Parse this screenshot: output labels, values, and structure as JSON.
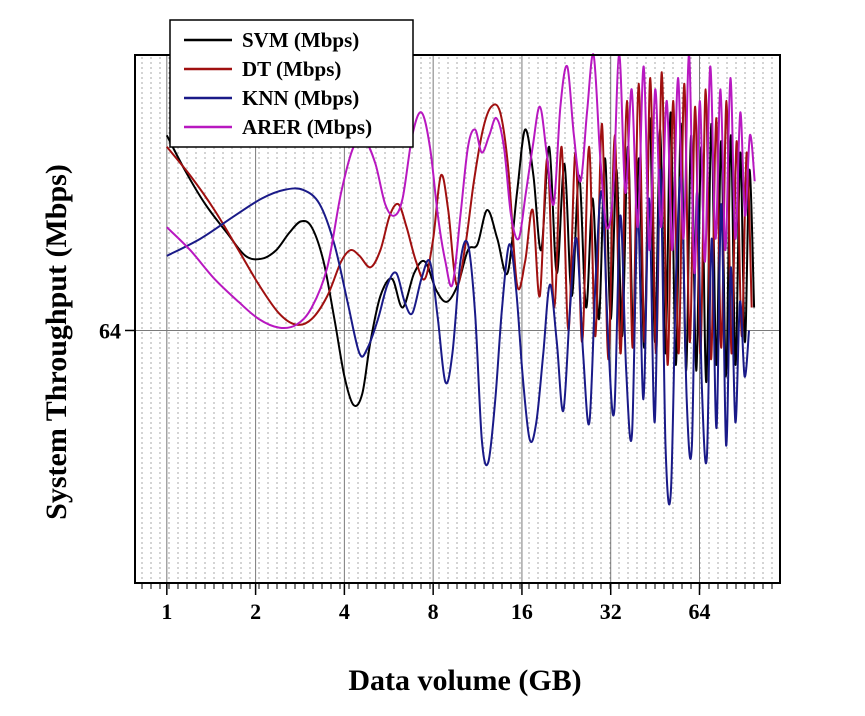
{
  "chart_data": {
    "type": "line",
    "xlabel": "Data volume (GB)",
    "ylabel": "System Throughput (Mbps)",
    "x_scale": "log2",
    "xlim": [
      0.78,
      120
    ],
    "x_ticks": [
      1,
      2,
      4,
      8,
      16,
      32,
      64
    ],
    "x_tick_labels": [
      "1",
      "2",
      "4",
      "8",
      "16",
      "32",
      "64"
    ],
    "ylim": [
      20,
      112
    ],
    "y_ticks": [
      64
    ],
    "y_tick_labels": [
      "64"
    ],
    "grid": true,
    "legend_position": "top-left",
    "series": [
      {
        "name": "SVM (Mbps)",
        "color": "#000000",
        "points": [
          [
            1,
            98
          ],
          [
            1.15,
            92
          ],
          [
            1.35,
            86
          ],
          [
            1.6,
            81
          ],
          [
            1.85,
            77
          ],
          [
            2.1,
            76.5
          ],
          [
            2.35,
            78
          ],
          [
            2.6,
            81
          ],
          [
            2.85,
            83
          ],
          [
            3.1,
            82
          ],
          [
            3.4,
            76
          ],
          [
            3.7,
            66
          ],
          [
            4.0,
            56
          ],
          [
            4.3,
            51
          ],
          [
            4.6,
            53
          ],
          [
            4.9,
            62
          ],
          [
            5.3,
            70
          ],
          [
            5.8,
            73
          ],
          [
            6.3,
            68
          ],
          [
            6.9,
            74
          ],
          [
            7.5,
            76
          ],
          [
            8.2,
            71
          ],
          [
            8.9,
            69
          ],
          [
            9.7,
            72
          ],
          [
            10.5,
            78
          ],
          [
            11.3,
            79
          ],
          [
            12.2,
            85
          ],
          [
            13.2,
            80
          ],
          [
            14.3,
            74
          ],
          [
            15.4,
            88
          ],
          [
            16.4,
            99
          ],
          [
            17.5,
            91
          ],
          [
            18.6,
            78
          ],
          [
            19.8,
            96
          ],
          [
            21.0,
            74
          ],
          [
            22.3,
            93
          ],
          [
            23.6,
            70
          ],
          [
            25.0,
            91
          ],
          [
            26.4,
            68
          ],
          [
            27.8,
            87
          ],
          [
            29.2,
            66
          ],
          [
            30.6,
            94
          ],
          [
            32.0,
            66
          ],
          [
            33.5,
            92
          ],
          [
            35.0,
            63
          ],
          [
            36.6,
            96
          ],
          [
            38.2,
            62
          ],
          [
            39.9,
            94
          ],
          [
            41.6,
            61
          ],
          [
            43.4,
            101
          ],
          [
            45.2,
            62
          ],
          [
            47.1,
            99
          ],
          [
            49.1,
            60
          ],
          [
            51.1,
            102
          ],
          [
            53.2,
            58
          ],
          [
            55.4,
            100
          ],
          [
            57.6,
            57
          ],
          [
            60.0,
            98
          ],
          [
            62.4,
            57
          ],
          [
            64.9,
            96
          ],
          [
            67.5,
            55
          ],
          [
            70.2,
            100
          ],
          [
            73.0,
            58
          ],
          [
            75.8,
            97
          ],
          [
            78.7,
            56
          ],
          [
            81.7,
            98
          ],
          [
            84.8,
            58
          ],
          [
            88.0,
            95
          ],
          [
            91.2,
            62
          ],
          [
            94.5,
            92
          ],
          [
            98.0,
            68
          ]
        ]
      },
      {
        "name": "DT (Mbps)",
        "color": "#a01010",
        "points": [
          [
            1,
            96
          ],
          [
            1.2,
            91
          ],
          [
            1.45,
            85
          ],
          [
            1.75,
            78
          ],
          [
            2.05,
            72
          ],
          [
            2.4,
            67
          ],
          [
            2.75,
            65
          ],
          [
            3.1,
            66
          ],
          [
            3.5,
            70
          ],
          [
            3.9,
            76
          ],
          [
            4.2,
            78
          ],
          [
            4.5,
            77
          ],
          [
            4.9,
            75
          ],
          [
            5.3,
            78
          ],
          [
            5.7,
            84
          ],
          [
            6.1,
            86
          ],
          [
            6.5,
            82
          ],
          [
            7.0,
            76
          ],
          [
            7.5,
            73
          ],
          [
            8.0,
            80
          ],
          [
            8.5,
            91
          ],
          [
            9.0,
            85
          ],
          [
            9.6,
            72
          ],
          [
            10.3,
            79
          ],
          [
            11.0,
            90
          ],
          [
            11.8,
            99
          ],
          [
            12.6,
            103
          ],
          [
            13.5,
            102
          ],
          [
            14.4,
            92
          ],
          [
            15.4,
            72
          ],
          [
            16.4,
            76
          ],
          [
            17.4,
            85
          ],
          [
            18.4,
            70
          ],
          [
            19.5,
            94
          ],
          [
            20.6,
            68
          ],
          [
            21.8,
            96
          ],
          [
            23.0,
            64
          ],
          [
            24.3,
            95
          ],
          [
            25.6,
            62
          ],
          [
            27.0,
            96
          ],
          [
            28.4,
            63
          ],
          [
            29.9,
            100
          ],
          [
            31.4,
            59
          ],
          [
            33.0,
            98
          ],
          [
            34.6,
            60
          ],
          [
            36.3,
            104
          ],
          [
            38.0,
            61
          ],
          [
            39.8,
            107
          ],
          [
            41.7,
            62
          ],
          [
            43.6,
            108
          ],
          [
            45.6,
            60
          ],
          [
            47.7,
            109
          ],
          [
            49.9,
            58
          ],
          [
            52.1,
            104
          ],
          [
            54.4,
            60
          ],
          [
            56.8,
            107
          ],
          [
            59.3,
            62
          ],
          [
            61.9,
            103
          ],
          [
            64.5,
            60
          ],
          [
            67.2,
            106
          ],
          [
            70.0,
            59
          ],
          [
            72.9,
            101
          ],
          [
            75.9,
            61
          ],
          [
            79.0,
            104
          ],
          [
            82.2,
            60
          ],
          [
            85.5,
            97
          ],
          [
            89.0,
            63
          ],
          [
            92.5,
            95
          ],
          [
            96.2,
            68
          ]
        ]
      },
      {
        "name": "KNN (Mbps)",
        "color": "#1a1a88",
        "points": [
          [
            1,
            77
          ],
          [
            1.3,
            80
          ],
          [
            1.7,
            84
          ],
          [
            2.1,
            87
          ],
          [
            2.5,
            88.5
          ],
          [
            2.9,
            88.5
          ],
          [
            3.3,
            86
          ],
          [
            3.7,
            79
          ],
          [
            4.1,
            69
          ],
          [
            4.5,
            60
          ],
          [
            4.8,
            61
          ],
          [
            5.2,
            66
          ],
          [
            5.6,
            72
          ],
          [
            6.0,
            74
          ],
          [
            6.4,
            69
          ],
          [
            6.8,
            67
          ],
          [
            7.3,
            73
          ],
          [
            7.8,
            76
          ],
          [
            8.3,
            66
          ],
          [
            8.8,
            55
          ],
          [
            9.3,
            60
          ],
          [
            9.9,
            76
          ],
          [
            10.5,
            79
          ],
          [
            11.1,
            67
          ],
          [
            11.7,
            45
          ],
          [
            12.3,
            41
          ],
          [
            13.0,
            52
          ],
          [
            13.7,
            68
          ],
          [
            14.5,
            79
          ],
          [
            15.3,
            71
          ],
          [
            16.1,
            56
          ],
          [
            17.0,
            45
          ],
          [
            17.9,
            48
          ],
          [
            18.9,
            60
          ],
          [
            19.9,
            72
          ],
          [
            21.0,
            62
          ],
          [
            22.1,
            50
          ],
          [
            23.3,
            68
          ],
          [
            24.5,
            80
          ],
          [
            25.8,
            60
          ],
          [
            27.1,
            48
          ],
          [
            28.5,
            74
          ],
          [
            29.9,
            88
          ],
          [
            31.4,
            62
          ],
          [
            32.9,
            50
          ],
          [
            34.5,
            84
          ],
          [
            36.1,
            57
          ],
          [
            37.8,
            46
          ],
          [
            39.5,
            85
          ],
          [
            41.3,
            52
          ],
          [
            43.2,
            87
          ],
          [
            45.1,
            48
          ],
          [
            47.1,
            92
          ],
          [
            49.1,
            44
          ],
          [
            51.2,
            36
          ],
          [
            53.4,
            75
          ],
          [
            55.6,
            90
          ],
          [
            57.9,
            52
          ],
          [
            60.3,
            44
          ],
          [
            62.7,
            88
          ],
          [
            65.2,
            54
          ],
          [
            67.8,
            42
          ],
          [
            70.4,
            80
          ],
          [
            73.1,
            47
          ],
          [
            75.9,
            86
          ],
          [
            78.8,
            44
          ],
          [
            81.7,
            75
          ],
          [
            84.7,
            48
          ],
          [
            87.8,
            69
          ],
          [
            91.0,
            56
          ],
          [
            94.2,
            64
          ]
        ]
      },
      {
        "name": "ARER (Mbps)",
        "color": "#b818c0",
        "points": [
          [
            1,
            82
          ],
          [
            1.2,
            78
          ],
          [
            1.45,
            73
          ],
          [
            1.75,
            69
          ],
          [
            2.05,
            66
          ],
          [
            2.4,
            64.5
          ],
          [
            2.75,
            65
          ],
          [
            3.1,
            68
          ],
          [
            3.5,
            75
          ],
          [
            3.9,
            88
          ],
          [
            4.3,
            96
          ],
          [
            4.7,
            97
          ],
          [
            5.1,
            93
          ],
          [
            5.5,
            86
          ],
          [
            5.9,
            84
          ],
          [
            6.3,
            87
          ],
          [
            6.8,
            98
          ],
          [
            7.3,
            102
          ],
          [
            7.8,
            96
          ],
          [
            8.3,
            84
          ],
          [
            8.8,
            76
          ],
          [
            9.3,
            72
          ],
          [
            9.9,
            84
          ],
          [
            10.5,
            96
          ],
          [
            11.1,
            99
          ],
          [
            11.7,
            95
          ],
          [
            12.4,
            98
          ],
          [
            13.1,
            101
          ],
          [
            13.9,
            96
          ],
          [
            14.7,
            84
          ],
          [
            15.6,
            80
          ],
          [
            16.5,
            88
          ],
          [
            17.4,
            96
          ],
          [
            18.4,
            103
          ],
          [
            19.4,
            95
          ],
          [
            20.5,
            86
          ],
          [
            21.6,
            103
          ],
          [
            22.8,
            110
          ],
          [
            24.0,
            98
          ],
          [
            25.3,
            90
          ],
          [
            26.6,
            102
          ],
          [
            28.0,
            112
          ],
          [
            29.5,
            94
          ],
          [
            31.0,
            82
          ],
          [
            32.6,
            88
          ],
          [
            34.2,
            112
          ],
          [
            35.9,
            88
          ],
          [
            37.7,
            106
          ],
          [
            39.5,
            82
          ],
          [
            41.4,
            110
          ],
          [
            43.3,
            78
          ],
          [
            45.3,
            106
          ],
          [
            47.4,
            82
          ],
          [
            49.6,
            104
          ],
          [
            51.8,
            78
          ],
          [
            54.1,
            108
          ],
          [
            56.5,
            80
          ],
          [
            59.0,
            112
          ],
          [
            61.5,
            74
          ],
          [
            64.1,
            104
          ],
          [
            66.8,
            76
          ],
          [
            69.6,
            110
          ],
          [
            72.5,
            80
          ],
          [
            75.4,
            106
          ],
          [
            78.4,
            78
          ],
          [
            81.5,
            108
          ],
          [
            84.7,
            80
          ],
          [
            88.0,
            102
          ],
          [
            91.4,
            84
          ],
          [
            94.9,
            98
          ],
          [
            98.5,
            90
          ]
        ]
      }
    ]
  }
}
